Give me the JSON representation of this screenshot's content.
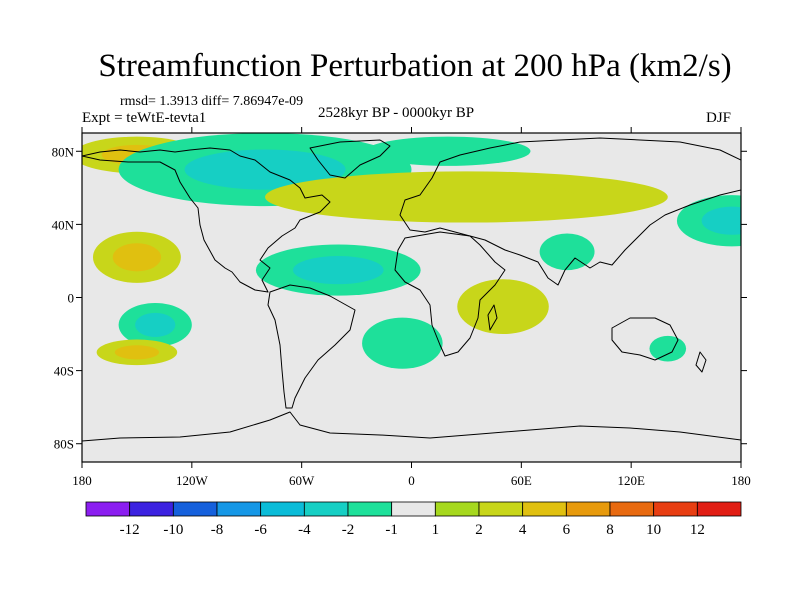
{
  "title": "Streamfunction Perturbation at 200 hPa (km2/s)",
  "stats_line": "rmsd= 1.3913 diff= 7.86947e-09",
  "experiment": "Expt = teWtE-tevta1",
  "period": "2528kyr BP - 0000kyr BP",
  "season": "DJF",
  "x_ticks": [
    {
      "lon": -180,
      "label": "180"
    },
    {
      "lon": -120,
      "label": "120W"
    },
    {
      "lon": -60,
      "label": "60W"
    },
    {
      "lon": 0,
      "label": "0"
    },
    {
      "lon": 60,
      "label": "60E"
    },
    {
      "lon": 120,
      "label": "120E"
    },
    {
      "lon": 180,
      "label": "180"
    }
  ],
  "y_ticks": [
    {
      "lat": 80,
      "label": "80N"
    },
    {
      "lat": 40,
      "label": "40N"
    },
    {
      "lat": 0,
      "label": "0"
    },
    {
      "lat": -40,
      "label": "40S"
    },
    {
      "lat": -80,
      "label": "80S"
    }
  ],
  "colorbar": {
    "colors": [
      "#8b1ef0",
      "#3c22e0",
      "#1560dc",
      "#1597e6",
      "#0bbcd8",
      "#16cfc4",
      "#1ee09a",
      "#e8e8e8",
      "#a6d81e",
      "#c8d61a",
      "#e0c010",
      "#e79a0c",
      "#e86a10",
      "#e83e12",
      "#e11e14"
    ],
    "labels": [
      "-12",
      "-10",
      "-8",
      "-6",
      "-4",
      "-2",
      "-1",
      "1",
      "2",
      "4",
      "6",
      "8",
      "10",
      "12"
    ]
  },
  "chart_data": {
    "type": "contour-map",
    "field": "200 hPa streamfunction perturbation (km2/s)",
    "projection": "cylindrical equidistant",
    "lon_range": [
      -180,
      180
    ],
    "lat_range": [
      -90,
      90
    ],
    "contour_levels": [
      -12,
      -10,
      -8,
      -6,
      -4,
      -2,
      -1,
      1,
      2,
      4,
      6,
      8,
      10,
      12
    ],
    "anomaly_regions": [
      {
        "name": "N Pacific high-lat",
        "lon": -150,
        "lat": 78,
        "rx": 35,
        "ry": 10,
        "value": 5
      },
      {
        "name": "N America / N Atlantic low",
        "lon": -80,
        "lat": 70,
        "rx": 80,
        "ry": 20,
        "value": -3
      },
      {
        "name": "Eurasia Arctic low",
        "lon": 20,
        "lat": 80,
        "rx": 45,
        "ry": 8,
        "value": -2
      },
      {
        "name": "N Atlantic-Asia jet band",
        "lon": 30,
        "lat": 55,
        "rx": 110,
        "ry": 14,
        "value": 3
      },
      {
        "name": "NE Pacific low",
        "lon": 175,
        "lat": 42,
        "rx": 30,
        "ry": 14,
        "value": -3
      },
      {
        "name": "Subtropical N Pacific high",
        "lon": -150,
        "lat": 22,
        "rx": 24,
        "ry": 14,
        "value": 5
      },
      {
        "name": "Tropical Atlantic low",
        "lon": -40,
        "lat": 15,
        "rx": 45,
        "ry": 14,
        "value": -4
      },
      {
        "name": "Tropical Indian low",
        "lon": 85,
        "lat": 25,
        "rx": 15,
        "ry": 10,
        "value": -1.5
      },
      {
        "name": "Equatorial Africa-Indian high",
        "lon": 50,
        "lat": -5,
        "rx": 25,
        "ry": 15,
        "value": 2
      },
      {
        "name": "Tropical S Pacific low",
        "lon": -140,
        "lat": -15,
        "rx": 20,
        "ry": 12,
        "value": -3
      },
      {
        "name": "S Atlantic low",
        "lon": -5,
        "lat": -25,
        "rx": 22,
        "ry": 14,
        "value": -1.5
      },
      {
        "name": "S Pacific high",
        "lon": -150,
        "lat": -30,
        "rx": 22,
        "ry": 7,
        "value": 4
      },
      {
        "name": "Australia low",
        "lon": 140,
        "lat": -28,
        "rx": 10,
        "ry": 7,
        "value": -1.5
      }
    ]
  }
}
